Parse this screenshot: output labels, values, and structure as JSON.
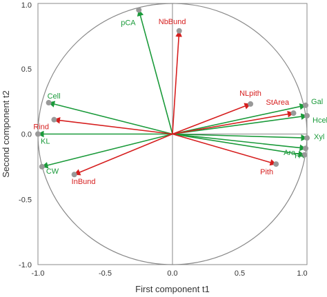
{
  "chart_data": {
    "type": "scatter",
    "title": "",
    "xlabel": "First component t1",
    "ylabel": "Second component t2",
    "xlim": [
      -1.0,
      1.0
    ],
    "ylim": [
      -1.0,
      1.0
    ],
    "x_ticks": [
      "-1.0",
      "-0.5",
      "0.0",
      "0.5",
      "1.0"
    ],
    "y_ticks": [
      "1.0",
      "0.5",
      "0.0",
      "-0.5",
      "-1.0"
    ],
    "unit_circle": true,
    "reference_lines": [
      0,
      0
    ],
    "colors": {
      "green": "#1a9a3a",
      "red": "#d61e1e",
      "point": "#999999",
      "axis": "#888888"
    },
    "variables": [
      {
        "label": "pCA",
        "x": -0.25,
        "y": 0.95,
        "color": "green"
      },
      {
        "label": "Cell",
        "x": -0.92,
        "y": 0.24,
        "color": "green"
      },
      {
        "label": "KL",
        "x": -1.0,
        "y": 0.0,
        "color": "green"
      },
      {
        "label": "CW",
        "x": -0.97,
        "y": -0.25,
        "color": "green"
      },
      {
        "label": "Gal",
        "x": 0.99,
        "y": 0.22,
        "color": "green"
      },
      {
        "label": "Hcel",
        "x": 1.0,
        "y": 0.14,
        "color": "green"
      },
      {
        "label": "Xyl",
        "x": 1.0,
        "y": -0.03,
        "color": "green"
      },
      {
        "label": "FA",
        "x": 0.99,
        "y": -0.11,
        "color": "green"
      },
      {
        "label": "Ara",
        "x": 0.98,
        "y": -0.16,
        "color": "green"
      },
      {
        "label": "NbBund",
        "x": 0.05,
        "y": 0.79,
        "color": "red"
      },
      {
        "label": "NLpith",
        "x": 0.58,
        "y": 0.23,
        "color": "red"
      },
      {
        "label": "StArea",
        "x": 0.9,
        "y": 0.16,
        "color": "red"
      },
      {
        "label": "Rind",
        "x": -0.88,
        "y": 0.11,
        "color": "red"
      },
      {
        "label": "InBund",
        "x": -0.73,
        "y": -0.31,
        "color": "red"
      },
      {
        "label": "Pith",
        "x": 0.77,
        "y": -0.23,
        "color": "red"
      }
    ]
  }
}
